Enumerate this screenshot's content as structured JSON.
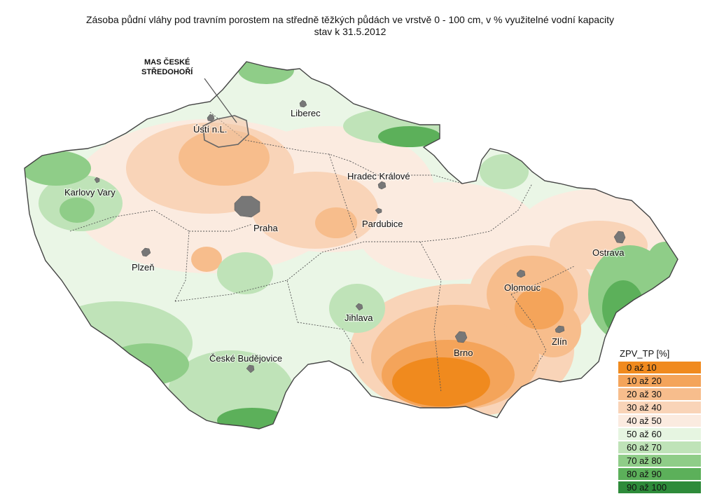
{
  "title": {
    "line1": "Zásoba půdní vláhy pod travním porostem na středně těžkých půdách ve vrstvě 0 - 100 cm, v % využitelné vodní kapacity",
    "line2": "stav k 31.5.2012"
  },
  "callout": {
    "line1": "MAS ČESKÉ",
    "line2": "STŘEDOHOŘÍ"
  },
  "cities": [
    {
      "name": "Liberec"
    },
    {
      "name": "Ústí n.L."
    },
    {
      "name": "Hradec Králové"
    },
    {
      "name": "Karlovy Vary"
    },
    {
      "name": "Pardubice"
    },
    {
      "name": "Praha"
    },
    {
      "name": "Ostrava"
    },
    {
      "name": "Plzeň"
    },
    {
      "name": "Olomouc"
    },
    {
      "name": "Jihlava"
    },
    {
      "name": "Zlín"
    },
    {
      "name": "Brno"
    },
    {
      "name": "České Budějovice"
    }
  ],
  "legend": {
    "title": "ZPV_TP [%]",
    "items": [
      {
        "label": "0 až 10",
        "color": "#f08a1e"
      },
      {
        "label": "10 až 20",
        "color": "#f4a45a"
      },
      {
        "label": "20 až 30",
        "color": "#f7bd8c"
      },
      {
        "label": "30 až 40",
        "color": "#f9d4b8"
      },
      {
        "label": "40 až 50",
        "color": "#fbebe0"
      },
      {
        "label": "50 až 60",
        "color": "#e6f5e1"
      },
      {
        "label": "60 až 70",
        "color": "#bfe3b8"
      },
      {
        "label": "70 až 80",
        "color": "#8fcd88"
      },
      {
        "label": "80 až 90",
        "color": "#5cb05a"
      },
      {
        "label": "90 až 100",
        "color": "#2e8b3a"
      }
    ]
  }
}
